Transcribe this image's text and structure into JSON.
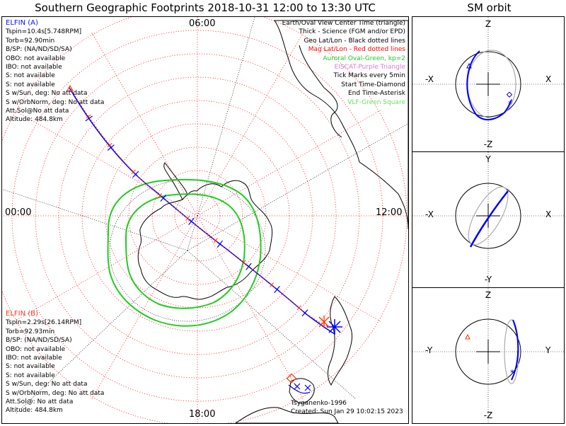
{
  "title": "Southern Geographic Footprints 2018-10-31 12:00 to 13:30 UTC",
  "sm_title": "SM orbit",
  "mlt_labels": {
    "top": "06:00",
    "left": "00:00",
    "right": "12:00",
    "bottom": "18:00"
  },
  "elfin_a": {
    "header": "ELFIN (A)",
    "lines": [
      "Tspin=10.4s[5.748RPM]",
      "Torb=92.90min",
      "B/SP: (NA/ND/SD/SA)",
      "OBO: not available",
      "IBO: not available",
      "S: not available",
      "S: not available",
      "S w/Sun, deg: No att data",
      "S w/OrbNorm, deg: No att data",
      "Att.Sol@No att data",
      "Altitude: 484.8km"
    ]
  },
  "elfin_b": {
    "header": "ELFIN (B)",
    "lines": [
      "Tspin=2.29s[26.14RPM]",
      "Torb=92.93min",
      "B/SP: (NA/ND/SD/SA)",
      "OBO: not available",
      "IBO: not available",
      "S: not available",
      "S: not available",
      "S w/Sun, deg: No att data",
      "S w/OrbNorm, deg: No att data",
      "Att.Sol@: No att data",
      "Altitude: 484.8km"
    ]
  },
  "legend": [
    {
      "text": "Earth/Oval View Center Time (triangle)",
      "color": "#000000"
    },
    {
      "text": "Thick - Science (FGM and/or EPD)",
      "color": "#000000"
    },
    {
      "text": "Geo Lat/Lon - Black dotted lines",
      "color": "#000000"
    },
    {
      "text": "Mag Lat/Lon - Red dotted lines",
      "color": "#ff0000"
    },
    {
      "text": "Auroral Oval-Green, kp=2",
      "color": "#22cc22"
    },
    {
      "text": "EISCAT-Purple Triangle",
      "color": "#dd77dd"
    },
    {
      "text": "Tick Marks every 5min",
      "color": "#000000"
    },
    {
      "text": "Start Time-Diamond",
      "color": "#000000"
    },
    {
      "text": "End Time-Asterisk",
      "color": "#000000"
    },
    {
      "text": "VLF-Green Square",
      "color": "#66dd66"
    }
  ],
  "footer": {
    "author": "Tsyganenko-1996",
    "created": "Created: Sun Jan 29 10:02:15 2023"
  },
  "sm_panels": [
    {
      "top": "Z",
      "bottom": "-Z",
      "left": "-X",
      "right": "X"
    },
    {
      "top": "Y",
      "bottom": "-Y",
      "left": "-X",
      "right": "X"
    },
    {
      "top": "Z",
      "bottom": "-Z",
      "left": "-Y",
      "right": "Y"
    }
  ],
  "colors": {
    "elfin_a": "#0000ff",
    "elfin_b": "#ff3300",
    "oval": "#22cc22",
    "mag_grid": "#ff0000",
    "geo_grid": "#000000"
  }
}
